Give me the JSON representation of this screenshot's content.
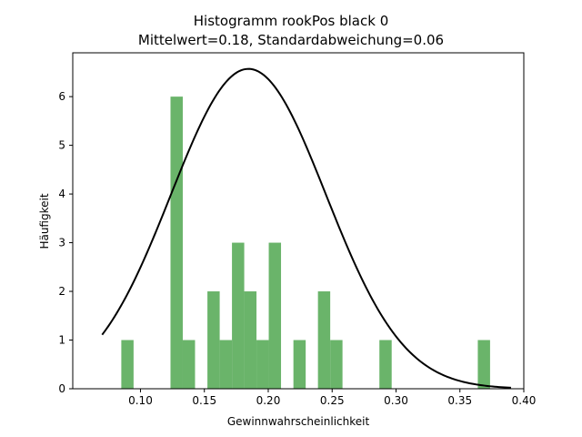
{
  "chart_data": {
    "type": "bar",
    "title": "Histogramm rookPos black 0",
    "subtitle": "Mittelwert=0.18, Standardabweichung=0.06",
    "xlabel": "Gewinnwahrscheinlichkeit",
    "ylabel": "Häufigkeit",
    "xlim": [
      0.047,
      0.4
    ],
    "ylim": [
      0,
      6.9
    ],
    "xticks": [
      0.1,
      0.15,
      0.2,
      0.25,
      0.3,
      0.35,
      0.4
    ],
    "xtick_labels": [
      "0.10",
      "0.15",
      "0.20",
      "0.25",
      "0.30",
      "0.35",
      "0.40"
    ],
    "yticks": [
      0,
      1,
      2,
      3,
      4,
      5,
      6
    ],
    "ytick_labels": [
      "0",
      "1",
      "2",
      "3",
      "4",
      "5",
      "6"
    ],
    "grid": false,
    "bar_color": "#6ab46a",
    "histogram": {
      "bin_width": 0.0096,
      "bins": [
        {
          "x0": 0.085,
          "count": 1
        },
        {
          "x0": 0.1235,
          "count": 6
        },
        {
          "x0": 0.1331,
          "count": 1
        },
        {
          "x0": 0.1524,
          "count": 2
        },
        {
          "x0": 0.162,
          "count": 1
        },
        {
          "x0": 0.1716,
          "count": 3
        },
        {
          "x0": 0.1812,
          "count": 2
        },
        {
          "x0": 0.1908,
          "count": 1
        },
        {
          "x0": 0.2004,
          "count": 3
        },
        {
          "x0": 0.2197,
          "count": 1
        },
        {
          "x0": 0.2389,
          "count": 2
        },
        {
          "x0": 0.2485,
          "count": 1
        },
        {
          "x0": 0.287,
          "count": 1
        },
        {
          "x0": 0.364,
          "count": 1
        }
      ]
    },
    "curve": {
      "type": "normal-pdf-scaled",
      "color": "#000000",
      "mean": 0.1845,
      "peak": 6.57,
      "sigma": 0.0607,
      "x_range": [
        0.07,
        0.39
      ]
    }
  }
}
